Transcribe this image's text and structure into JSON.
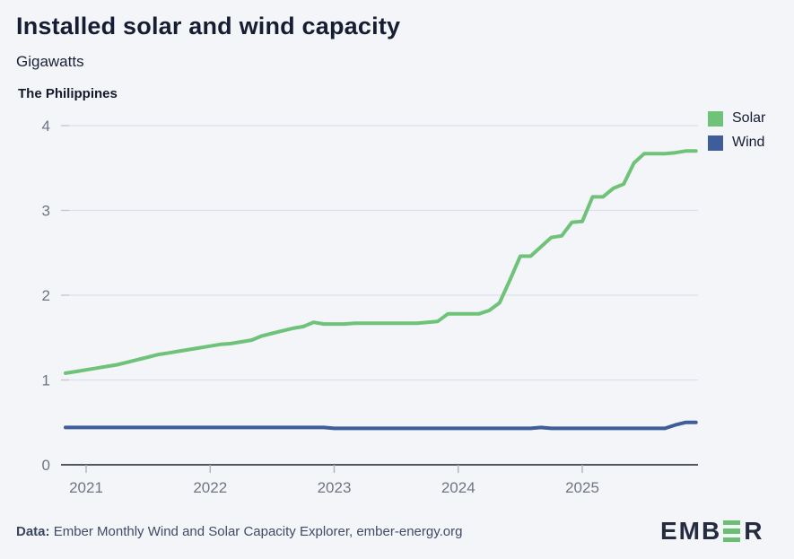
{
  "header": {
    "title": "Installed solar and wind capacity",
    "units": "Gigawatts",
    "region": "The Philippines"
  },
  "footer": {
    "label": "Data:",
    "source": "Ember Monthly Wind and Solar Capacity Explorer, ember-energy.org"
  },
  "logo": {
    "left": "EMB",
    "right": "R"
  },
  "colors": {
    "background": "#f3f5f9",
    "title_text": "#161d33",
    "axis_line": "#1c2333",
    "tick_label": "#6f7583",
    "gridline": "#dde1ea",
    "tick_mark": "#adb3c0",
    "solar": "#6ec379",
    "wind": "#3e5d99"
  },
  "chart_data": {
    "type": "line",
    "title": "Installed solar and wind capacity",
    "ylabel": "Gigawatts",
    "region": "The Philippines",
    "ylim": [
      0,
      4
    ],
    "yticks": [
      0,
      1,
      2,
      3,
      4
    ],
    "xticks": [
      2021,
      2022,
      2023,
      2024,
      2025
    ],
    "grid": "horizontal",
    "legend_position": "top-right",
    "months": [
      "2020-11",
      "2020-12",
      "2021-01",
      "2021-02",
      "2021-03",
      "2021-04",
      "2021-05",
      "2021-06",
      "2021-07",
      "2021-08",
      "2021-09",
      "2021-10",
      "2021-11",
      "2021-12",
      "2022-01",
      "2022-02",
      "2022-03",
      "2022-04",
      "2022-05",
      "2022-06",
      "2022-07",
      "2022-08",
      "2022-09",
      "2022-10",
      "2022-11",
      "2022-12",
      "2023-01",
      "2023-02",
      "2023-03",
      "2023-04",
      "2023-05",
      "2023-06",
      "2023-07",
      "2023-08",
      "2023-09",
      "2023-10",
      "2023-11",
      "2023-12",
      "2024-01",
      "2024-02",
      "2024-03",
      "2024-04",
      "2024-05",
      "2024-06",
      "2024-07",
      "2024-08",
      "2024-09",
      "2024-10",
      "2024-11",
      "2024-12",
      "2025-01",
      "2025-02",
      "2025-03",
      "2025-04",
      "2025-05",
      "2025-06",
      "2025-07",
      "2025-08",
      "2025-09",
      "2025-10",
      "2025-11",
      "2025-12"
    ],
    "series": [
      {
        "name": "Solar",
        "color": "#6ec379",
        "values": [
          1.08,
          1.1,
          1.12,
          1.14,
          1.16,
          1.18,
          1.21,
          1.24,
          1.27,
          1.3,
          1.32,
          1.34,
          1.36,
          1.38,
          1.4,
          1.42,
          1.43,
          1.45,
          1.47,
          1.52,
          1.55,
          1.58,
          1.61,
          1.63,
          1.68,
          1.66,
          1.66,
          1.66,
          1.67,
          1.67,
          1.67,
          1.67,
          1.67,
          1.67,
          1.67,
          1.68,
          1.69,
          1.78,
          1.78,
          1.78,
          1.78,
          1.82,
          1.91,
          2.18,
          2.46,
          2.46,
          2.57,
          2.68,
          2.7,
          2.86,
          2.87,
          3.16,
          3.16,
          3.26,
          3.31,
          3.56,
          3.67,
          3.67,
          3.67,
          3.68,
          3.7,
          3.7
        ]
      },
      {
        "name": "Wind",
        "color": "#3e5d99",
        "values": [
          0.44,
          0.44,
          0.44,
          0.44,
          0.44,
          0.44,
          0.44,
          0.44,
          0.44,
          0.44,
          0.44,
          0.44,
          0.44,
          0.44,
          0.44,
          0.44,
          0.44,
          0.44,
          0.44,
          0.44,
          0.44,
          0.44,
          0.44,
          0.44,
          0.44,
          0.44,
          0.43,
          0.43,
          0.43,
          0.43,
          0.43,
          0.43,
          0.43,
          0.43,
          0.43,
          0.43,
          0.43,
          0.43,
          0.43,
          0.43,
          0.43,
          0.43,
          0.43,
          0.43,
          0.43,
          0.43,
          0.44,
          0.43,
          0.43,
          0.43,
          0.43,
          0.43,
          0.43,
          0.43,
          0.43,
          0.43,
          0.43,
          0.43,
          0.43,
          0.47,
          0.5,
          0.5
        ]
      }
    ]
  }
}
